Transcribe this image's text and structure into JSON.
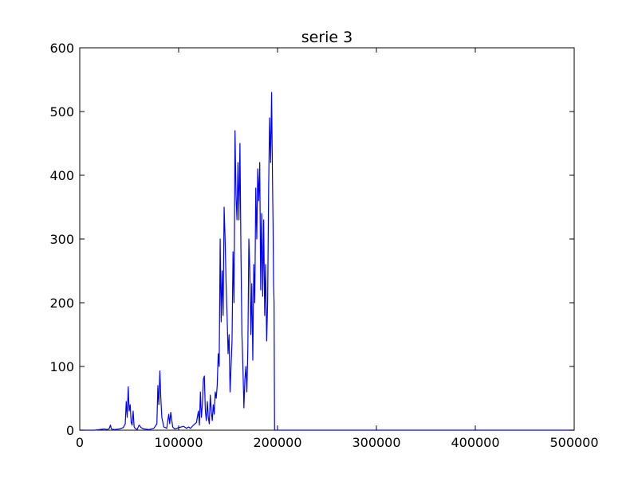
{
  "chart_data": {
    "type": "line",
    "title": "serie 3",
    "xlabel": "",
    "ylabel": "",
    "xlim": [
      0,
      500000
    ],
    "ylim": [
      0,
      600
    ],
    "x_ticks": [
      0,
      100000,
      200000,
      300000,
      400000,
      500000
    ],
    "y_ticks": [
      0,
      100,
      200,
      300,
      400,
      500,
      600
    ],
    "x_tick_labels": [
      "0",
      "100000",
      "200000",
      "300000",
      "400000",
      "500000"
    ],
    "y_tick_labels": [
      "0",
      "100",
      "200",
      "300",
      "400",
      "500",
      "600"
    ],
    "grid": false,
    "line_color": "#0000ff",
    "series": [
      {
        "x": [
          0,
          15000,
          20000,
          25000,
          28000,
          30000,
          31000,
          32000,
          35000,
          40000,
          44000,
          46000,
          47000,
          48000,
          49000,
          50000,
          51000,
          52000,
          53000,
          54000,
          55000,
          56000,
          57000,
          58000,
          60000,
          62000,
          65000,
          70000,
          75000,
          78000,
          79000,
          80000,
          81000,
          82000,
          83000,
          85000,
          88000,
          89000,
          90000,
          91000,
          92000,
          94000,
          96000,
          100000,
          105000,
          108000,
          110000,
          112000,
          115000,
          118000,
          120000,
          121000,
          122000,
          123000,
          124000,
          125000,
          126000,
          127000,
          128000,
          129000,
          130000,
          131000,
          132000,
          133000,
          134000,
          135000,
          136000,
          137000,
          138000,
          139000,
          140000,
          141000,
          142000,
          143000,
          144000,
          145000,
          146000,
          147000,
          148000,
          149000,
          150000,
          151000,
          152000,
          153000,
          154000,
          155000,
          156000,
          157000,
          158000,
          159000,
          160000,
          161000,
          162000,
          163000,
          164000,
          165000,
          166000,
          167000,
          168000,
          169000,
          170000,
          171000,
          172000,
          173000,
          174000,
          175000,
          176000,
          177000,
          178000,
          179000,
          180000,
          181000,
          182000,
          183000,
          184000,
          185000,
          186000,
          187000,
          188000,
          189000,
          190000,
          191000,
          192000,
          193000,
          194000,
          195000,
          195500,
          196000,
          196500,
          197000,
          200000,
          250000,
          300000,
          350000,
          400000,
          450000,
          500000
        ],
        "values": [
          0,
          0,
          1,
          2,
          1,
          3,
          8,
          2,
          1,
          2,
          4,
          10,
          45,
          20,
          68,
          30,
          40,
          12,
          8,
          30,
          5,
          3,
          2,
          1,
          8,
          4,
          2,
          1,
          3,
          10,
          70,
          40,
          93,
          50,
          20,
          5,
          3,
          15,
          25,
          10,
          28,
          5,
          2,
          4,
          6,
          3,
          5,
          3,
          8,
          12,
          30,
          8,
          60,
          20,
          40,
          80,
          85,
          30,
          15,
          45,
          20,
          10,
          55,
          30,
          15,
          40,
          25,
          60,
          50,
          70,
          120,
          100,
          300,
          170,
          250,
          180,
          350,
          300,
          230,
          180,
          120,
          150,
          60,
          100,
          140,
          280,
          200,
          470,
          370,
          330,
          420,
          330,
          450,
          280,
          150,
          100,
          35,
          80,
          100,
          60,
          130,
          300,
          250,
          150,
          230,
          110,
          260,
          200,
          380,
          300,
          410,
          360,
          420,
          220,
          340,
          210,
          330,
          180,
          260,
          140,
          200,
          380,
          490,
          420,
          530,
          380,
          320,
          230,
          200,
          0,
          0,
          0,
          0,
          0,
          0,
          0,
          0
        ]
      }
    ]
  }
}
